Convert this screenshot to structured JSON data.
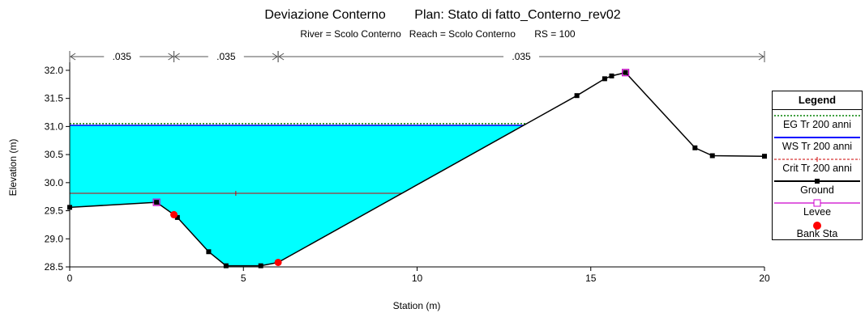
{
  "title": "Deviazione Conterno        Plan: Stato di fatto_Conterno_rev02",
  "subtitle": "River = Scolo Conterno   Reach = Scolo Conterno       RS = 100",
  "chart_data": {
    "type": "line",
    "xlabel": "Station (m)",
    "ylabel": "Elevation (m)",
    "xlim": [
      0,
      20
    ],
    "ylim": [
      28.5,
      32.1
    ],
    "xticks": [
      0,
      5,
      10,
      15,
      20
    ],
    "yticks": [
      28.5,
      29.0,
      29.5,
      30.0,
      30.5,
      31.0,
      31.5,
      32.0
    ],
    "ground": {
      "x": [
        0,
        2.5,
        3.0,
        3.1,
        4.0,
        4.5,
        5.5,
        6.0,
        14.6,
        15.4,
        15.6,
        16.0,
        18.0,
        18.5,
        20.0
      ],
      "y": [
        29.56,
        29.65,
        29.43,
        29.38,
        28.77,
        28.52,
        28.52,
        28.58,
        31.55,
        31.85,
        31.9,
        31.96,
        30.62,
        30.48,
        30.47
      ]
    },
    "ws_elevation": 31.02,
    "eg_elevation": 31.05,
    "crit_elevation": 29.81,
    "levees": [
      {
        "x": 2.5,
        "y": 29.65
      },
      {
        "x": 16.0,
        "y": 31.96
      }
    ],
    "bank_stations": [
      {
        "x": 3.0,
        "y": 29.43
      },
      {
        "x": 6.0,
        "y": 28.58
      }
    ],
    "manning_n": [
      {
        "from": 0,
        "to": 3,
        "label": ".035"
      },
      {
        "from": 3,
        "to": 6,
        "label": ".035"
      },
      {
        "from": 6,
        "to": 20,
        "label": ".035"
      }
    ],
    "colors": {
      "water": "#00ffff",
      "ground": "#000000",
      "eg": "#008000",
      "ws": "#0000ff",
      "crit": "#cc0000",
      "levee": "#cc00cc",
      "bank": "#ff0000"
    },
    "legend": {
      "title": "Legend",
      "items": [
        {
          "key": "eg",
          "label": "EG Tr 200 anni"
        },
        {
          "key": "ws",
          "label": "WS Tr 200 anni"
        },
        {
          "key": "crit",
          "label": "Crit Tr 200 anni"
        },
        {
          "key": "ground",
          "label": "Ground"
        },
        {
          "key": "levee",
          "label": "Levee"
        },
        {
          "key": "bank",
          "label": "Bank Sta"
        }
      ]
    }
  }
}
